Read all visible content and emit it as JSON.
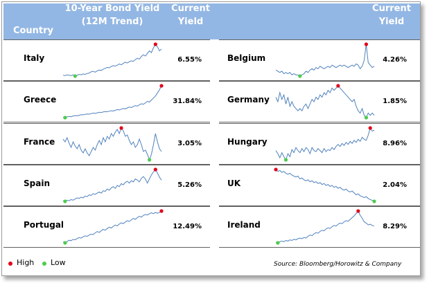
{
  "header": {
    "country": "Country",
    "trend_line1": "10-Year Bond Yield",
    "trend_line2": "(12M Trend)",
    "yield_line1": "Current",
    "yield_line2": "Yield",
    "yield2_line1": "Current",
    "yield2_line2": "Yield"
  },
  "legend": {
    "high": "High",
    "low": "Low"
  },
  "source": "Source: Bloomberg/Horowitz & Company",
  "colors": {
    "header_bg": "#93b7e4",
    "line": "#4f81bd",
    "high": "#e2001a",
    "low": "#4ccc4c"
  },
  "chart_data": [
    {
      "type": "line",
      "country": "Italy",
      "yield_label": "6.55%",
      "y": [
        6.3,
        6.2,
        6.4,
        6.3,
        6.2,
        6.4,
        6.1,
        6.3,
        6.5,
        6.4,
        6.6,
        6.5,
        6.7,
        6.8,
        7.1,
        7.2,
        7.0,
        7.3,
        7.5,
        7.4,
        7.7,
        7.9,
        8.1,
        8.0,
        8.3,
        8.5,
        8.4,
        8.6,
        8.9,
        8.7,
        9.0,
        9.3,
        9.1,
        9.4,
        9.6,
        9.5,
        9.9,
        10.2,
        10.0,
        10.6,
        11.0,
        10.7,
        11.3,
        11.9,
        11.5,
        12.6,
        13.4,
        12.8,
        11.9,
        12.3
      ]
    },
    {
      "type": "line",
      "country": "Greece",
      "yield_label": "31.84%",
      "y": [
        9.2,
        9.0,
        9.4,
        9.6,
        9.5,
        9.9,
        10.1,
        10.0,
        10.3,
        10.6,
        10.5,
        10.8,
        11.0,
        10.9,
        11.2,
        11.5,
        11.3,
        11.6,
        11.9,
        11.8,
        12.1,
        12.3,
        12.2,
        12.5,
        12.8,
        12.6,
        13.0,
        13.4,
        13.2,
        13.6,
        14.0,
        13.8,
        14.3,
        14.8,
        14.5,
        15.1,
        15.6,
        15.3,
        16.0,
        16.6,
        16.3,
        17.1,
        17.9,
        17.5,
        18.6,
        19.7,
        20.8,
        22.5,
        24.2,
        26.4
      ]
    },
    {
      "type": "line",
      "country": "France",
      "yield_label": "3.05%",
      "y": [
        3.3,
        3.1,
        3.4,
        3.0,
        2.7,
        3.1,
        2.8,
        2.6,
        2.9,
        2.5,
        2.3,
        2.6,
        2.3,
        2.1,
        2.4,
        2.7,
        2.5,
        2.9,
        3.2,
        2.9,
        3.4,
        3.1,
        3.5,
        3.3,
        3.7,
        3.5,
        3.8,
        4.0,
        3.7,
        4.1,
        3.9,
        3.5,
        3.6,
        3.2,
        2.9,
        3.1,
        2.7,
        2.9,
        3.3,
        2.9,
        2.4,
        2.5,
        2.2,
        1.8,
        2.2,
        2.9,
        3.7,
        3.1,
        2.6,
        2.4
      ]
    },
    {
      "type": "line",
      "country": "Spain",
      "yield_label": "5.26%",
      "y": [
        4.9,
        4.8,
        5.0,
        4.9,
        5.1,
        5.0,
        5.2,
        5.4,
        5.3,
        5.5,
        5.4,
        5.7,
        5.6,
        5.9,
        5.8,
        6.1,
        6.0,
        6.2,
        6.4,
        6.2,
        6.6,
        6.5,
        6.9,
        6.7,
        7.1,
        7.3,
        7.0,
        7.5,
        7.3,
        7.8,
        7.6,
        8.0,
        8.2,
        7.9,
        8.3,
        8.1,
        8.6,
        8.4,
        8.1,
        8.7,
        9.0,
        8.6,
        7.9,
        8.6,
        9.3,
        9.8,
        10.2,
        9.6,
        8.9,
        8.4
      ]
    },
    {
      "type": "line",
      "country": "Portugal",
      "yield_label": "12.49%",
      "y": [
        8.5,
        8.3,
        8.6,
        8.9,
        8.8,
        9.1,
        9.0,
        9.3,
        9.5,
        9.4,
        9.7,
        9.9,
        9.8,
        10.1,
        10.3,
        10.2,
        10.6,
        10.9,
        10.7,
        11.1,
        11.4,
        11.2,
        11.6,
        11.9,
        11.7,
        12.1,
        12.4,
        12.2,
        12.6,
        12.9,
        12.7,
        13.1,
        13.4,
        13.2,
        13.6,
        13.9,
        13.7,
        14.1,
        14.4,
        14.2,
        14.6,
        14.8,
        14.7,
        15.0,
        15.2,
        15.0,
        15.3,
        15.1,
        15.3,
        15.6
      ]
    },
    {
      "type": "line",
      "country": "Belgium",
      "yield_label": "4.26%",
      "y": [
        3.8,
        3.7,
        3.6,
        3.7,
        3.5,
        3.6,
        3.5,
        3.6,
        3.4,
        3.5,
        3.4,
        3.4,
        3.3,
        3.4,
        3.5,
        3.7,
        3.6,
        3.8,
        3.9,
        3.8,
        4.0,
        3.9,
        4.1,
        4.0,
        3.9,
        4.0,
        4.1,
        4.0,
        4.2,
        4.1,
        4.0,
        4.1,
        4.2,
        4.1,
        4.2,
        4.1,
        4.0,
        4.1,
        4.2,
        4.1,
        4.3,
        4.2,
        3.9,
        4.1,
        4.6,
        5.9,
        4.4,
        4.2,
        4.0,
        4.1
      ]
    },
    {
      "type": "line",
      "country": "Germany",
      "yield_label": "1.85%",
      "y": [
        2.6,
        2.4,
        2.8,
        2.5,
        2.7,
        2.3,
        2.6,
        2.2,
        2.4,
        2.2,
        2.1,
        2.0,
        2.1,
        2.0,
        2.2,
        2.3,
        2.1,
        2.3,
        2.5,
        2.4,
        2.6,
        2.5,
        2.7,
        2.6,
        2.8,
        2.7,
        2.9,
        2.8,
        3.0,
        2.9,
        3.0,
        3.1,
        3.0,
        2.9,
        2.8,
        2.7,
        2.6,
        2.5,
        2.4,
        2.5,
        2.2,
        2.0,
        1.9,
        2.1,
        1.8,
        1.7,
        1.9,
        1.8,
        1.9,
        1.8
      ]
    },
    {
      "type": "line",
      "country": "Hungary",
      "yield_label": "8.96%",
      "y": [
        7.5,
        7.2,
        6.8,
        7.3,
        6.9,
        6.6,
        7.2,
        6.9,
        7.6,
        7.3,
        7.8,
        7.5,
        7.3,
        7.7,
        7.4,
        7.8,
        7.6,
        7.2,
        7.8,
        7.5,
        7.4,
        7.7,
        7.5,
        7.3,
        7.7,
        7.4,
        7.6,
        7.5,
        7.8,
        7.6,
        7.9,
        8.1,
        7.9,
        8.2,
        8.0,
        8.3,
        8.1,
        8.4,
        8.2,
        8.5,
        8.3,
        8.6,
        8.4,
        8.8,
        8.6,
        8.5,
        9.0,
        9.7,
        9.4,
        9.5
      ]
    },
    {
      "type": "line",
      "country": "UK",
      "yield_label": "2.04%",
      "y": [
        3.7,
        3.6,
        3.65,
        3.55,
        3.6,
        3.5,
        3.45,
        3.5,
        3.4,
        3.35,
        3.3,
        3.35,
        3.2,
        3.25,
        3.15,
        3.1,
        3.15,
        3.05,
        3.1,
        3.0,
        3.05,
        2.95,
        3.0,
        2.9,
        2.95,
        2.85,
        2.9,
        2.8,
        2.85,
        2.75,
        2.8,
        2.7,
        2.75,
        2.65,
        2.6,
        2.65,
        2.55,
        2.5,
        2.55,
        2.45,
        2.35,
        2.4,
        2.3,
        2.25,
        2.2,
        2.25,
        2.15,
        2.1,
        2.05,
        2.0
      ]
    },
    {
      "type": "line",
      "country": "Ireland",
      "yield_label": "8.29%",
      "y": [
        5.8,
        5.7,
        5.9,
        6.0,
        5.9,
        6.1,
        6.0,
        6.2,
        6.1,
        6.3,
        6.2,
        6.4,
        6.5,
        6.4,
        6.6,
        6.5,
        6.8,
        7.0,
        6.9,
        7.2,
        7.4,
        7.3,
        7.6,
        7.8,
        7.7,
        8.0,
        8.2,
        8.1,
        8.4,
        8.6,
        8.5,
        8.8,
        9.0,
        8.9,
        9.2,
        9.4,
        9.3,
        9.6,
        9.9,
        10.2,
        10.6,
        11.0,
        10.3,
        9.8,
        9.2,
        9.0,
        8.7,
        8.8,
        8.6,
        8.5
      ]
    }
  ]
}
